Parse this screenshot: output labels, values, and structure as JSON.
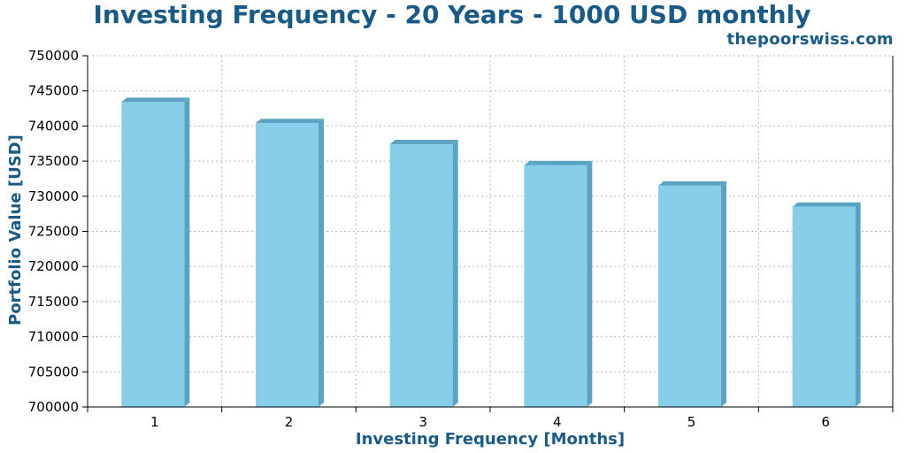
{
  "header": {
    "title": "Investing Frequency - 20 Years - 1000 USD monthly",
    "source": "thepoorswiss.com"
  },
  "colors": {
    "bar_front": "#87ceeb",
    "bar_side": "#5ba3c2",
    "title": "#1a5a86",
    "grid": "#bbbbbb"
  },
  "chart_data": {
    "type": "bar",
    "title": "Investing Frequency - 20 Years - 1000 USD monthly",
    "xlabel": "Investing Frequency [Months]",
    "ylabel": "Portfolio Value [USD]",
    "categories": [
      "1",
      "2",
      "3",
      "4",
      "5",
      "6"
    ],
    "values": [
      743400,
      740400,
      737400,
      734400,
      731500,
      728500
    ],
    "ylim": [
      700000,
      750000
    ],
    "yticks": [
      "700000",
      "705000",
      "710000",
      "715000",
      "720000",
      "725000",
      "730000",
      "735000",
      "740000",
      "745000",
      "750000"
    ],
    "grid": true,
    "legend": "none"
  }
}
